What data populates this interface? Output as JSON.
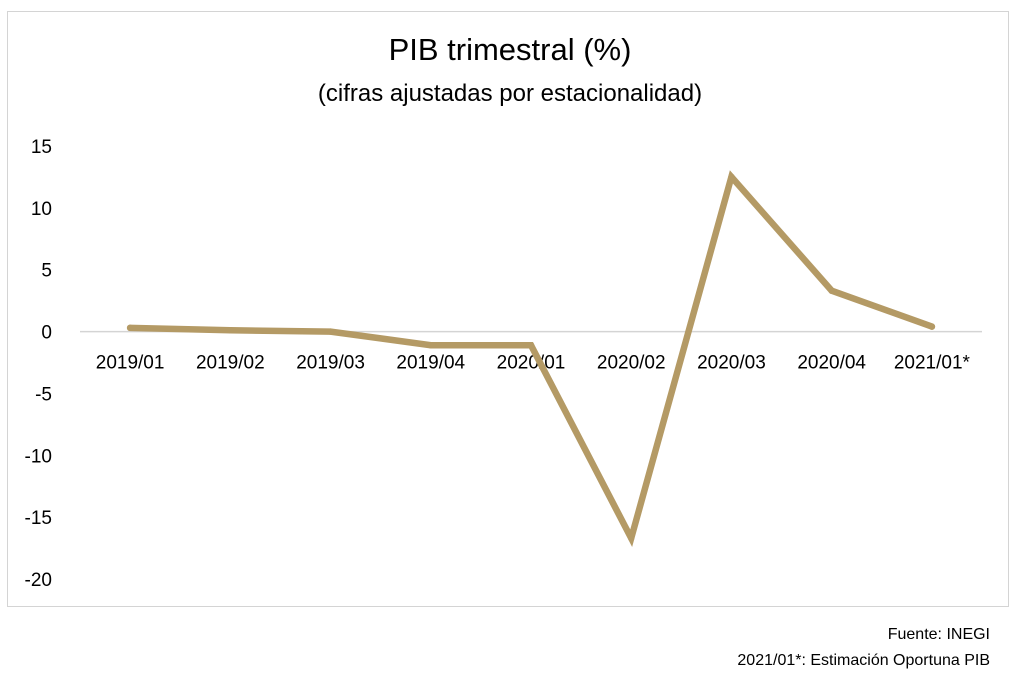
{
  "chart_data": {
    "type": "line",
    "title": "PIB trimestral (%)",
    "subtitle": "(cifras ajustadas por estacionalidad)",
    "categories": [
      "2019/01",
      "2019/02",
      "2019/03",
      "2019/04",
      "2020/01",
      "2020/02",
      "2020/03",
      "2020/04",
      "2021/01*"
    ],
    "series": [
      {
        "values": [
          0.3,
          0.1,
          0.0,
          -1.1,
          -1.1,
          -16.7,
          12.5,
          3.3,
          0.4
        ]
      }
    ],
    "ylim": [
      -20,
      15
    ],
    "yticks": [
      15,
      10,
      5,
      0,
      -5,
      -10,
      -15,
      -20
    ],
    "xlabel": "",
    "ylabel": "",
    "grid": false,
    "legend": "none",
    "line_color": "#b49a65",
    "axis_color": "#d4d4d4"
  },
  "footer": {
    "source": "Fuente: INEGI",
    "note": "2021/01*: Estimación Oportuna PIB"
  }
}
